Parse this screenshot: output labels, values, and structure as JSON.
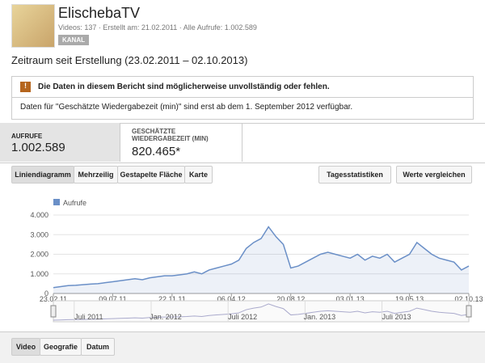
{
  "header": {
    "title": "ElischebaTV",
    "videos": "Videos: 137",
    "created": "Erstellt am: 21.02.2011",
    "views": "Alle Aufrufe: 1.002.589",
    "badge": "KANAL"
  },
  "period": "Zeitraum seit Erstellung (23.02.2011 – 02.10.2013)",
  "warning": {
    "title": "Die Daten in diesem Bericht sind möglicherweise unvollständig oder fehlen.",
    "text": "Daten für \"Geschätzte Wiedergabezeit (min)\" sind erst ab dem 1. September 2012 verfügbar."
  },
  "metrics": [
    {
      "label": "AUFRUFE",
      "value": "1.002.589"
    },
    {
      "label": "GESCHÄTZTE WIEDERGABEZEIT (MIN)",
      "value": "820.465*"
    }
  ],
  "chart_tabs": [
    "Liniendiagramm",
    "Mehrzeilig",
    "Gestapelte Fläche",
    "Karte"
  ],
  "dropdowns": [
    "Tagesstatistiken",
    "Werte vergleichen"
  ],
  "navigator": {
    "labels": [
      "Juli 2011",
      "Jan. 2012",
      "Juli 2012",
      "Jan. 2013",
      "Juli 2013"
    ]
  },
  "bottom_tabs": [
    "Video",
    "Geografie",
    "Datum"
  ],
  "chart_data": {
    "type": "line",
    "categories": [
      "23.02.11",
      null,
      null,
      null,
      null,
      null,
      null,
      null,
      "09.07.11",
      null,
      null,
      null,
      null,
      null,
      null,
      null,
      "22.11.11",
      null,
      null,
      null,
      null,
      null,
      null,
      null,
      "06.04.12",
      null,
      null,
      null,
      null,
      null,
      null,
      null,
      "20.08.12",
      null,
      null,
      null,
      null,
      null,
      null,
      null,
      "03.01.13",
      null,
      null,
      null,
      null,
      null,
      null,
      null,
      "19.05.13",
      null,
      null,
      null,
      null,
      null,
      null,
      null,
      "02.10.13"
    ],
    "series": [
      {
        "name": "Aufrufe",
        "color": "#6a8fc7",
        "values": [
          300,
          350,
          400,
          420,
          450,
          480,
          500,
          550,
          600,
          650,
          700,
          750,
          700,
          800,
          850,
          900,
          900,
          950,
          1000,
          1100,
          1000,
          1200,
          1300,
          1400,
          1500,
          1700,
          2300,
          2600,
          2800,
          3400,
          2900,
          2500,
          1300,
          1400,
          1600,
          1800,
          2000,
          2100,
          2000,
          1900,
          1800,
          2000,
          1700,
          1900,
          1800,
          2000,
          1600,
          1800,
          2000,
          2600,
          2300,
          2000,
          1800,
          1700,
          1600,
          1200,
          1400
        ]
      }
    ],
    "ylim": [
      0,
      4000
    ],
    "yticks": [
      0,
      {
        "value": 1000,
        "label": "1.000"
      },
      {
        "value": 2000,
        "label": "2.000"
      },
      {
        "value": 3000,
        "label": "3.000"
      },
      {
        "value": 4000,
        "label": "4.000"
      }
    ],
    "grid": true
  }
}
